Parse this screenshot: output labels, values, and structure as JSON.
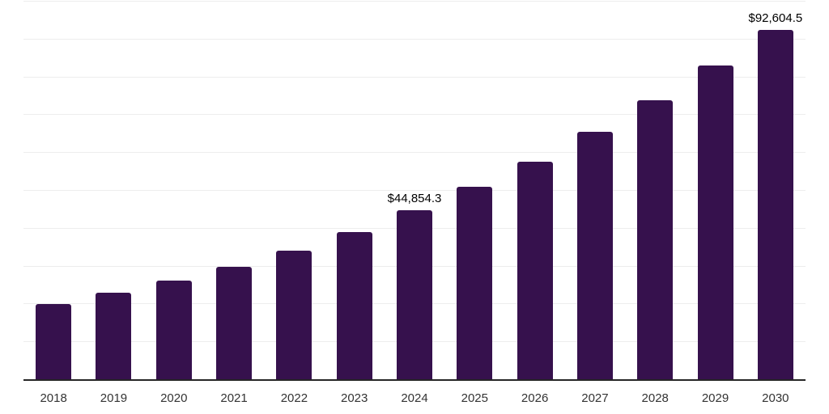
{
  "chart_data": {
    "type": "bar",
    "title": "",
    "xlabel": "",
    "ylabel": "",
    "categories": [
      "2018",
      "2019",
      "2020",
      "2021",
      "2022",
      "2023",
      "2024",
      "2025",
      "2026",
      "2027",
      "2028",
      "2029",
      "2030"
    ],
    "values": [
      20000,
      23000,
      26250,
      30000,
      34250,
      39100,
      44854.3,
      51050,
      57800,
      65600,
      73900,
      83100,
      92604.5
    ],
    "data_labels": [
      "",
      "",
      "",
      "",
      "",
      "",
      "$44,854.3",
      "",
      "",
      "",
      "",
      "",
      "$92,604.5"
    ],
    "ylim": [
      0,
      100000
    ],
    "y_axis": {
      "visible": false,
      "min": 0,
      "max": 100000,
      "step": 10000
    },
    "grid": true,
    "legend": "none",
    "colors": {
      "bar": "#36114d",
      "gridline": "#ededed",
      "axis_line": "#262626",
      "tick_label": "#333333",
      "data_label": "#000000",
      "background": "#ffffff"
    }
  }
}
